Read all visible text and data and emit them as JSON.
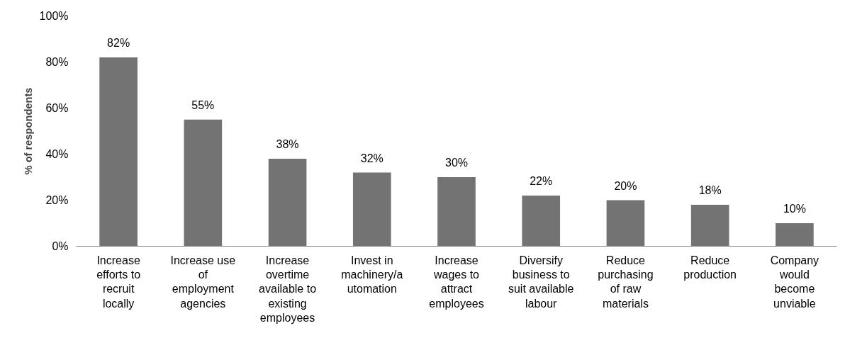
{
  "chart_data": {
    "type": "bar",
    "ylabel": "% of respondents",
    "categories": [
      "Increase\nefforts to\nrecruit\nlocally",
      "Increase use\nof\nemployment\nagencies",
      "Increase\novertime\navailable to\nexisting\nemployees",
      "Invest in\nmachinery/a\nutomation",
      "Increase\nwages to\nattract\nemployees",
      "Diversify\nbusiness to\nsuit available\nlabour",
      "Reduce\npurchasing\nof raw\nmaterials",
      "Reduce\nproduction",
      "Company\nwould\nbecome\nunviable"
    ],
    "values": [
      82,
      55,
      38,
      32,
      30,
      22,
      20,
      18,
      10
    ],
    "color": "#737373",
    "ylim": [
      0,
      100
    ],
    "yticks": [
      {
        "value": 0,
        "label": "0%"
      },
      {
        "value": 20,
        "label": "20%"
      },
      {
        "value": 40,
        "label": "40%"
      },
      {
        "value": 60,
        "label": "60%"
      },
      {
        "value": 80,
        "label": "80%"
      },
      {
        "value": 100,
        "label": "100%"
      }
    ],
    "value_labels": [
      "82%",
      "55%",
      "38%",
      "32%",
      "30%",
      "22%",
      "20%",
      "18%",
      "10%"
    ],
    "grid": false
  }
}
